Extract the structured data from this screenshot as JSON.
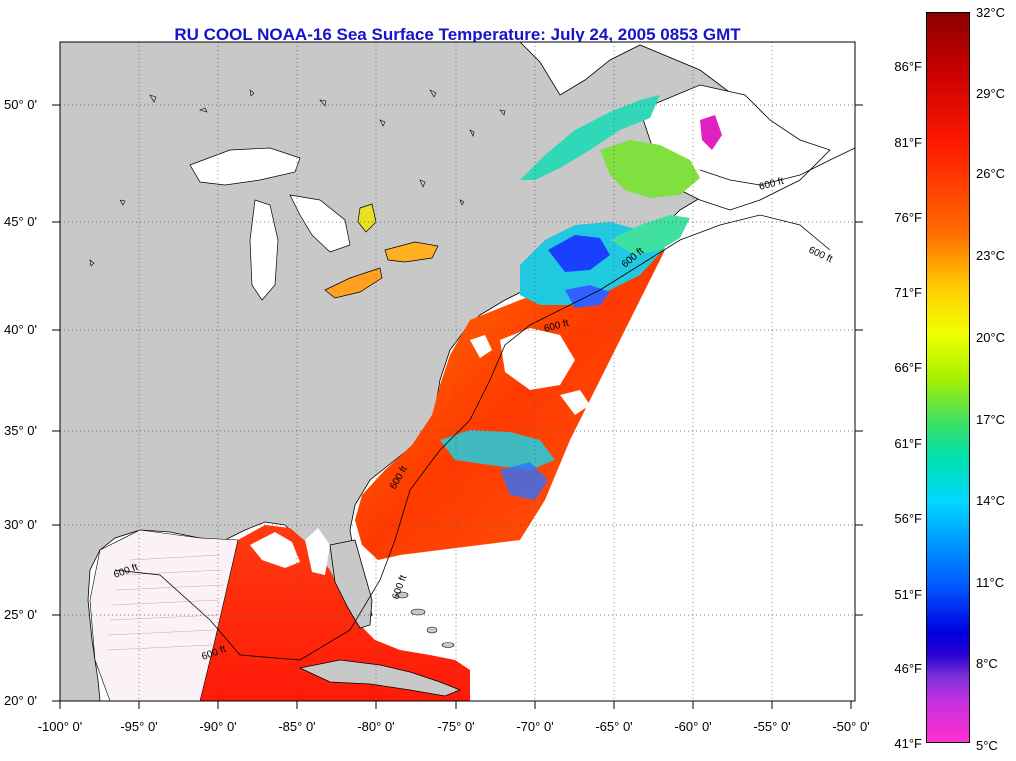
{
  "title": "RU COOL  NOAA-16  Sea Surface Temperature:  July 24, 2005 0853 GMT",
  "lat_ticks": [
    "50° 0'",
    "45° 0'",
    "40° 0'",
    "35° 0'",
    "30° 0'",
    "25° 0'",
    "20° 0'"
  ],
  "lon_ticks": [
    "-100° 0'",
    "-95° 0'",
    "-90° 0'",
    "-85° 0'",
    "-80° 0'",
    "-75° 0'",
    "-70° 0'",
    "-65° 0'",
    "-60° 0'",
    "-55° 0'",
    "-50° 0'"
  ],
  "colorbar": {
    "fahrenheit": [
      "86°F",
      "81°F",
      "76°F",
      "71°F",
      "66°F",
      "61°F",
      "56°F",
      "51°F",
      "46°F",
      "41°F"
    ],
    "celsius": [
      "32°C",
      "29°C",
      "26°C",
      "23°C",
      "20°C",
      "17°C",
      "14°C",
      "11°C",
      "8°C",
      "5°C"
    ]
  },
  "contour_labels": [
    "600 ft",
    "600 ft",
    "600 ft",
    "600 ft",
    "600 ft",
    "600 ft",
    "600 ft",
    "600 ft"
  ],
  "colors": {
    "land": "#c8c8c8",
    "ocean_no_data": "#ffffff",
    "title": "#1414c8"
  }
}
